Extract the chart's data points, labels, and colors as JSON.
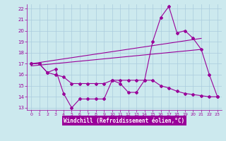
{
  "xlabel": "Windchill (Refroidissement éolien,°C)",
  "xlim": [
    -0.5,
    23.5
  ],
  "ylim": [
    12.8,
    22.4
  ],
  "yticks": [
    13,
    14,
    15,
    16,
    17,
    18,
    19,
    20,
    21,
    22
  ],
  "xticks": [
    0,
    1,
    2,
    3,
    4,
    5,
    6,
    7,
    8,
    9,
    10,
    11,
    12,
    13,
    14,
    15,
    16,
    17,
    18,
    19,
    20,
    21,
    22,
    23
  ],
  "bg_color": "#cce9ee",
  "line_color": "#990099",
  "grid_color": "#aaccdd",
  "line1_x": [
    0,
    1,
    2,
    3,
    4,
    5,
    6,
    7,
    8,
    9,
    10,
    11,
    12,
    13,
    14,
    15,
    16,
    17,
    18,
    19,
    20,
    21,
    22,
    23
  ],
  "line1_y": [
    17.0,
    17.0,
    16.2,
    16.5,
    14.3,
    13.0,
    13.8,
    13.8,
    13.8,
    13.8,
    15.5,
    15.2,
    14.4,
    14.4,
    15.5,
    19.0,
    21.2,
    22.2,
    19.8,
    20.0,
    19.3,
    18.3,
    16.0,
    14.0
  ],
  "line2_x": [
    0,
    1,
    2,
    3,
    4,
    5,
    6,
    7,
    8,
    9,
    10,
    11,
    12,
    13,
    14,
    15,
    16,
    17,
    18,
    19,
    20,
    21,
    22,
    23
  ],
  "line2_y": [
    17.0,
    17.0,
    16.2,
    16.0,
    15.8,
    15.2,
    15.2,
    15.2,
    15.2,
    15.2,
    15.5,
    15.5,
    15.5,
    15.5,
    15.5,
    15.5,
    15.0,
    14.8,
    14.5,
    14.3,
    14.2,
    14.1,
    14.0,
    14.0
  ],
  "line3_x": [
    0,
    21
  ],
  "line3_y": [
    17.0,
    19.3
  ],
  "line4_x": [
    0,
    21
  ],
  "line4_y": [
    16.8,
    18.3
  ]
}
